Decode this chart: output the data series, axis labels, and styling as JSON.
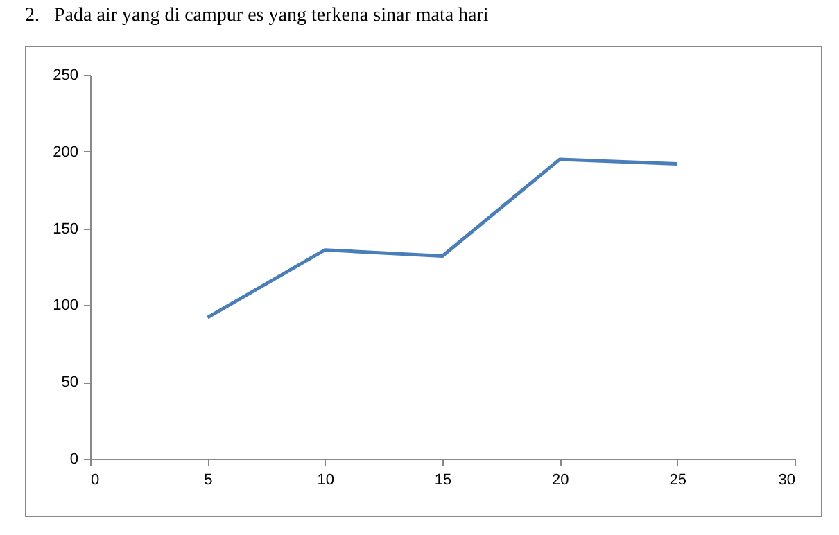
{
  "chart_data": {
    "type": "line",
    "title": "2.   Pada air yang di campur es yang terkena sinar mata hari",
    "x": [
      5,
      10,
      15,
      20,
      25
    ],
    "series": [
      {
        "color": "#4a7ebb",
        "values": [
          92,
          136,
          132,
          195,
          192
        ]
      }
    ],
    "xlim": [
      0,
      30
    ],
    "xticks": [
      0,
      5,
      10,
      15,
      20,
      25,
      30
    ],
    "ylim": [
      0,
      250
    ],
    "yticks": [
      0,
      50,
      100,
      150,
      200,
      250
    ],
    "grid": false,
    "legend": false,
    "marker": "none",
    "line_style": "solid"
  }
}
